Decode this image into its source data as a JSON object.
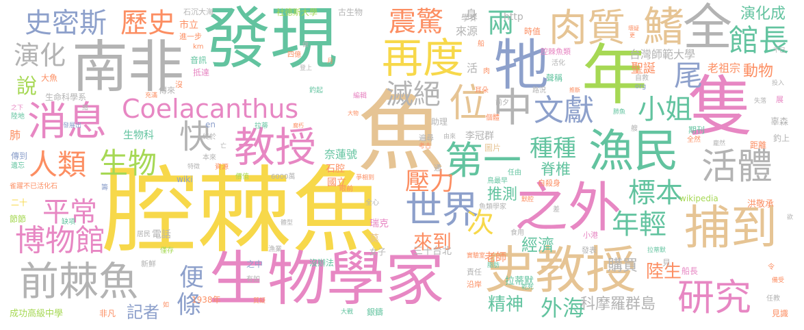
{
  "palette": {
    "yellow": "#f7d84a",
    "green": "#62c39f",
    "pink": "#e787c3",
    "orange": "#fc8e62",
    "gray": "#b3b3b3",
    "tan": "#e6c494",
    "lime": "#a6d854",
    "blue": "#8da0cb"
  },
  "words": [
    {
      "text": "腔棘魚",
      "color": "yellow"
    },
    {
      "text": "發現",
      "color": "green"
    },
    {
      "text": "南非",
      "color": "gray"
    },
    {
      "text": "魚",
      "color": "tan"
    },
    {
      "text": "生物學家",
      "color": "pink"
    },
    {
      "text": "年",
      "color": "lime"
    },
    {
      "text": "隻",
      "color": "pink"
    },
    {
      "text": "牠",
      "color": "blue"
    },
    {
      "text": "全",
      "color": "gray"
    },
    {
      "text": "鰭",
      "color": "tan"
    },
    {
      "text": "之外",
      "color": "pink"
    },
    {
      "text": "史教授",
      "color": "tan"
    },
    {
      "text": "捕到",
      "color": "tan"
    },
    {
      "text": "漁民",
      "color": "green"
    },
    {
      "text": "再度",
      "color": "yellow"
    },
    {
      "text": "肉質",
      "color": "tan"
    },
    {
      "text": "Coelacanthus",
      "color": "pink"
    },
    {
      "text": "教授",
      "color": "pink"
    },
    {
      "text": "消息",
      "color": "pink"
    },
    {
      "text": "前棘魚",
      "color": "gray"
    },
    {
      "text": "世界",
      "color": "blue"
    },
    {
      "text": "第一",
      "color": "green"
    },
    {
      "text": "中",
      "color": "gray"
    },
    {
      "text": "位",
      "color": "tan"
    },
    {
      "text": "館長",
      "color": "green"
    },
    {
      "text": "活體",
      "color": "gray"
    },
    {
      "text": "史密斯",
      "color": "blue"
    },
    {
      "text": "歷史",
      "color": "orange"
    },
    {
      "text": "震驚",
      "color": "orange"
    },
    {
      "text": "兩",
      "color": "green"
    },
    {
      "text": "文獻",
      "color": "blue"
    },
    {
      "text": "小姐",
      "color": "green"
    },
    {
      "text": "尾",
      "color": "blue"
    },
    {
      "text": "研究",
      "color": "pink"
    },
    {
      "text": "博物館",
      "color": "pink"
    },
    {
      "text": "平常",
      "color": "pink"
    },
    {
      "text": "人類",
      "color": "orange"
    },
    {
      "text": "生物",
      "color": "lime"
    },
    {
      "text": "快",
      "color": "gray"
    },
    {
      "text": "演化",
      "color": "gray"
    },
    {
      "text": "說",
      "color": "lime"
    },
    {
      "text": "滅絕",
      "color": "gray"
    },
    {
      "text": "種種",
      "color": "green"
    },
    {
      "text": "壓力",
      "color": "orange"
    },
    {
      "text": "標本",
      "color": "green"
    },
    {
      "text": "年輕",
      "color": "green"
    },
    {
      "text": "次",
      "color": "yellow"
    },
    {
      "text": "便",
      "color": "blue"
    },
    {
      "text": "條",
      "color": "blue"
    },
    {
      "text": "外海",
      "color": "green"
    },
    {
      "text": "精神",
      "color": "green"
    },
    {
      "text": "來到",
      "color": "orange"
    },
    {
      "text": "陸生",
      "color": "orange"
    },
    {
      "text": "演化成",
      "color": "green"
    },
    {
      "text": "動物",
      "color": "orange"
    },
    {
      "text": "推測",
      "color": "green"
    },
    {
      "text": "脊椎",
      "color": "green"
    },
    {
      "text": "經濟",
      "color": "green"
    },
    {
      "text": "記者",
      "color": "blue"
    },
    {
      "text": "購買",
      "color": "gray"
    },
    {
      "text": "科摩羅群島",
      "color": "gray"
    },
    {
      "text": "老師",
      "color": "orange"
    },
    {
      "text": "台灣師範大學",
      "color": "gray"
    },
    {
      "text": "老祖宗",
      "color": "orange"
    },
    {
      "text": "聖誕",
      "color": "orange"
    },
    {
      "text": "活",
      "color": "gray"
    },
    {
      "text": "身",
      "color": "gray"
    },
    {
      "text": "來源",
      "color": "gray"
    },
    {
      "text": "學界",
      "color": "gray"
    },
    {
      "text": "http",
      "color": "gray"
    },
    {
      "text": "時值",
      "color": "orange"
    },
    {
      "text": "腔棘魚類",
      "color": "pink"
    },
    {
      "text": "石沉大海",
      "color": "gray"
    },
    {
      "text": "社德斯大學",
      "color": "lime"
    },
    {
      "text": "古生物",
      "color": "gray"
    },
    {
      "text": "市立",
      "color": "orange"
    },
    {
      "text": "進一步",
      "color": "orange"
    },
    {
      "text": "生命科學系",
      "color": "gray"
    },
    {
      "text": "肺",
      "color": "orange"
    },
    {
      "text": "生物科",
      "color": "green"
    },
    {
      "text": "大魚",
      "color": "orange"
    },
    {
      "text": "奈蓮號",
      "color": "green"
    },
    {
      "text": "石腔",
      "color": "orange"
    },
    {
      "text": "國立",
      "color": "orange"
    },
    {
      "text": "李冠群",
      "color": "gray"
    },
    {
      "text": "圖片",
      "color": "tan"
    },
    {
      "text": "瑞克",
      "color": "pink"
    },
    {
      "text": "莫",
      "color": "tan"
    },
    {
      "text": "女子",
      "color": "gray"
    },
    {
      "text": "三十台北",
      "color": "gray"
    },
    {
      "text": "拉蒂默",
      "color": "green"
    },
    {
      "text": "1938年",
      "color": "orange"
    },
    {
      "text": "成功高級中學",
      "color": "lime"
    },
    {
      "text": "非凡",
      "color": "orange"
    },
    {
      "text": "電話",
      "color": "gray"
    },
    {
      "text": "wikipedia",
      "color": "lime"
    },
    {
      "text": "洪敬承",
      "color": "orange"
    },
    {
      "text": "船長",
      "color": "pink"
    },
    {
      "text": "見識",
      "color": "orange"
    },
    {
      "text": "辜森",
      "color": "gray"
    },
    {
      "text": "釣上",
      "color": "gray"
    },
    {
      "text": "距離",
      "color": "orange"
    },
    {
      "text": "節節",
      "color": "lime"
    },
    {
      "text": "二十",
      "color": "yellow"
    },
    {
      "text": "傳到",
      "color": "blue"
    },
    {
      "text": "遺忘",
      "color": "green"
    },
    {
      "text": "沿岸",
      "color": "orange"
    },
    {
      "text": "銀鑄",
      "color": "green"
    },
    {
      "text": "大戰",
      "color": "green"
    },
    {
      "text": "沒辦法",
      "color": "green"
    },
    {
      "text": "之中",
      "color": "blue"
    },
    {
      "text": "漁業",
      "color": "gray"
    },
    {
      "text": "新鮮",
      "color": "gray"
    },
    {
      "text": "有如",
      "color": "gray"
    },
    {
      "text": "質疑",
      "color": "orange"
    },
    {
      "text": "食用",
      "color": "gray"
    },
    {
      "text": "發表",
      "color": "gray"
    },
    {
      "text": "小港",
      "color": "pink"
    },
    {
      "text": "實驗室",
      "color": "orange"
    },
    {
      "text": "責任",
      "color": "gray"
    },
    {
      "text": "差",
      "color": "gray"
    },
    {
      "text": "默腔",
      "color": "orange"
    },
    {
      "text": "魚類學家",
      "color": "gray"
    },
    {
      "text": "自殺身",
      "color": "orange"
    },
    {
      "text": "鳥最早",
      "color": "green"
    },
    {
      "text": "任由",
      "color": "green"
    },
    {
      "text": "6000萬",
      "color": "gray"
    },
    {
      "text": "wiki",
      "color": "blue"
    },
    {
      "text": "價值",
      "color": "lime"
    },
    {
      "text": "資源",
      "color": "orange"
    },
    {
      "text": "特徵",
      "color": "gray"
    },
    {
      "text": "眼前",
      "color": "orange"
    },
    {
      "text": "爭相到",
      "color": "orange"
    },
    {
      "text": "全心",
      "color": "gray"
    },
    {
      "text": "體型",
      "color": "gray"
    },
    {
      "text": "居民",
      "color": "gray"
    },
    {
      "text": "僅存",
      "color": "lime"
    },
    {
      "text": "缺項",
      "color": "green"
    },
    {
      "text": "雀躍不已活化石",
      "color": "orange"
    },
    {
      "text": "籌",
      "color": "blue"
    },
    {
      "text": "本來",
      "color": "gray"
    },
    {
      "text": "終於",
      "color": "gray"
    },
    {
      "text": "亡",
      "color": "gray"
    },
    {
      "text": "en",
      "color": "blue"
    },
    {
      "text": "發展出",
      "color": "blue"
    },
    {
      "text": "鰭",
      "color": "gray"
    },
    {
      "text": "陸地",
      "color": "green"
    },
    {
      "text": "之下",
      "color": "pink"
    },
    {
      "text": "充滿",
      "color": "orange"
    },
    {
      "text": "傳來",
      "color": "gray"
    },
    {
      "text": "沒",
      "color": "orange"
    },
    {
      "text": "抵達",
      "color": "pink"
    },
    {
      "text": "音訊",
      "color": "green"
    },
    {
      "text": "km",
      "color": "orange"
    },
    {
      "text": "四億",
      "color": "orange"
    },
    {
      "text": "登上",
      "color": "gray"
    },
    {
      "text": "月",
      "color": "orange"
    },
    {
      "text": "做",
      "color": "gray"
    },
    {
      "text": "釣起",
      "color": "green"
    },
    {
      "text": "編輯",
      "color": "pink"
    },
    {
      "text": "大物",
      "color": "orange"
    },
    {
      "text": "腐朽",
      "color": "orange"
    },
    {
      "text": "拉蒂",
      "color": "green"
    },
    {
      "text": "助理",
      "color": "gray"
    },
    {
      "text": "遍尋",
      "color": "gray"
    },
    {
      "text": "考古",
      "color": "orange"
    },
    {
      "text": "由來",
      "color": "gray"
    },
    {
      "text": "個體",
      "color": "orange"
    },
    {
      "text": "前夕",
      "color": "gray"
    },
    {
      "text": "耳朵",
      "color": "orange"
    },
    {
      "text": "肉",
      "color": "orange"
    },
    {
      "text": "船",
      "color": "orange"
    },
    {
      "text": "路況",
      "color": "gray"
    },
    {
      "text": "聲稱",
      "color": "green"
    },
    {
      "text": "活化",
      "color": "gray"
    },
    {
      "text": "自救",
      "color": "gray"
    },
    {
      "text": "org",
      "color": "blue"
    },
    {
      "text": "推斷",
      "color": "orange"
    },
    {
      "text": "失落",
      "color": "gray"
    },
    {
      "text": "投入",
      "color": "gray"
    },
    {
      "text": "展",
      "color": "pink"
    },
    {
      "text": "肺魚",
      "color": "green"
    },
    {
      "text": "艘",
      "color": "gray"
    },
    {
      "text": "期刊",
      "color": "green"
    },
    {
      "text": "全然",
      "color": "orange"
    },
    {
      "text": "龐然",
      "color": "gray"
    },
    {
      "text": "壞疑",
      "color": "orange"
    },
    {
      "text": "更",
      "color": "orange"
    },
    {
      "text": "令",
      "color": "orange"
    },
    {
      "text": "備受",
      "color": "orange"
    },
    {
      "text": "任教",
      "color": "gray"
    },
    {
      "text": "欲",
      "color": "gray"
    },
    {
      "text": "見",
      "color": "gray"
    },
    {
      "text": "拉蒂默",
      "color": "green"
    },
    {
      "text": "乾死",
      "color": "green"
    },
    {
      "text": "脂肪",
      "color": "green"
    },
    {
      "text": "通",
      "color": "gray"
    },
    {
      "text": "如",
      "color": "orange"
    },
    {
      "text": "不已",
      "color": "gray"
    }
  ]
}
